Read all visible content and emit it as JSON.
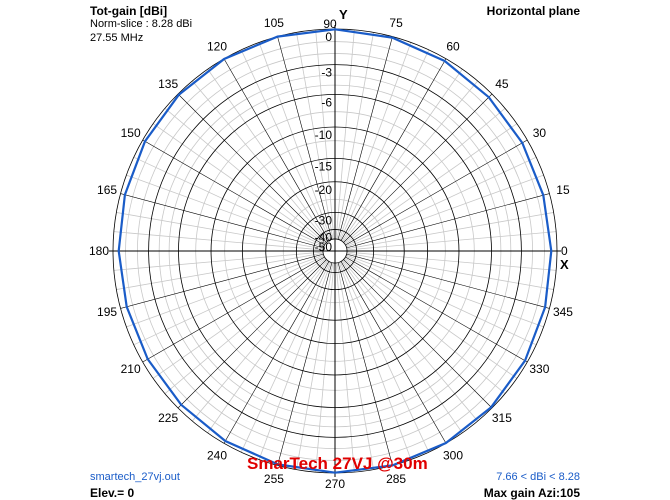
{
  "header": {
    "gain_label": "Tot-gain [dBi]",
    "norm_slice": "Norm-slice : 8.28 dBi",
    "frequency": "27.55 MHz",
    "plane": "Horizontal plane"
  },
  "footer": {
    "filename": "smartech_27vj.out",
    "elevation": "Elev.= 0",
    "title": "SmarTech 27VJ @30m",
    "gain_range": "7.66 < dBi < 8.28",
    "max_gain": "Max gain Azi:105"
  },
  "axes": {
    "x_label": "X",
    "y_label": "Y"
  },
  "colors": {
    "pattern": "#1a5cc8",
    "title": "#e00000",
    "info": "#1a5cc8",
    "grid": "#000000",
    "grid_minor": "#c8c8c8"
  },
  "chart_data": {
    "type": "polar",
    "angle_ticks": [
      0,
      15,
      30,
      45,
      60,
      75,
      90,
      105,
      120,
      135,
      150,
      165,
      180,
      195,
      210,
      225,
      240,
      255,
      270,
      285,
      300,
      315,
      330,
      345
    ],
    "angle_labels": [
      "0",
      "15",
      "30",
      "45",
      "60",
      "75",
      "90",
      "105",
      "120",
      "135",
      "150",
      "165",
      "180",
      "195",
      "210",
      "225",
      "240",
      "255",
      "270",
      "285",
      "300",
      "315",
      "330",
      "345"
    ],
    "radial_ticks": [
      0,
      -3,
      -6,
      -10,
      -15,
      -20,
      -30,
      -40,
      -50
    ],
    "radial_labels": [
      "0",
      "-3",
      "-6",
      "-10",
      "-15",
      "-20",
      "-30",
      "-40",
      "-50"
    ],
    "series": [
      {
        "azimuth": [
          0,
          15,
          30,
          45,
          60,
          75,
          90,
          105,
          120,
          135,
          150,
          165,
          180,
          195,
          210,
          225,
          240,
          255,
          270,
          285,
          300,
          315,
          330,
          345,
          360
        ],
        "gain_norm_db": [
          -0.45,
          -0.5,
          -0.45,
          -0.35,
          -0.2,
          -0.08,
          -0.02,
          0,
          -0.02,
          -0.08,
          -0.2,
          -0.35,
          -0.45,
          -0.5,
          -0.45,
          -0.35,
          -0.2,
          -0.08,
          -0.02,
          0,
          -0.02,
          -0.08,
          -0.2,
          -0.35,
          -0.45
        ]
      }
    ]
  }
}
